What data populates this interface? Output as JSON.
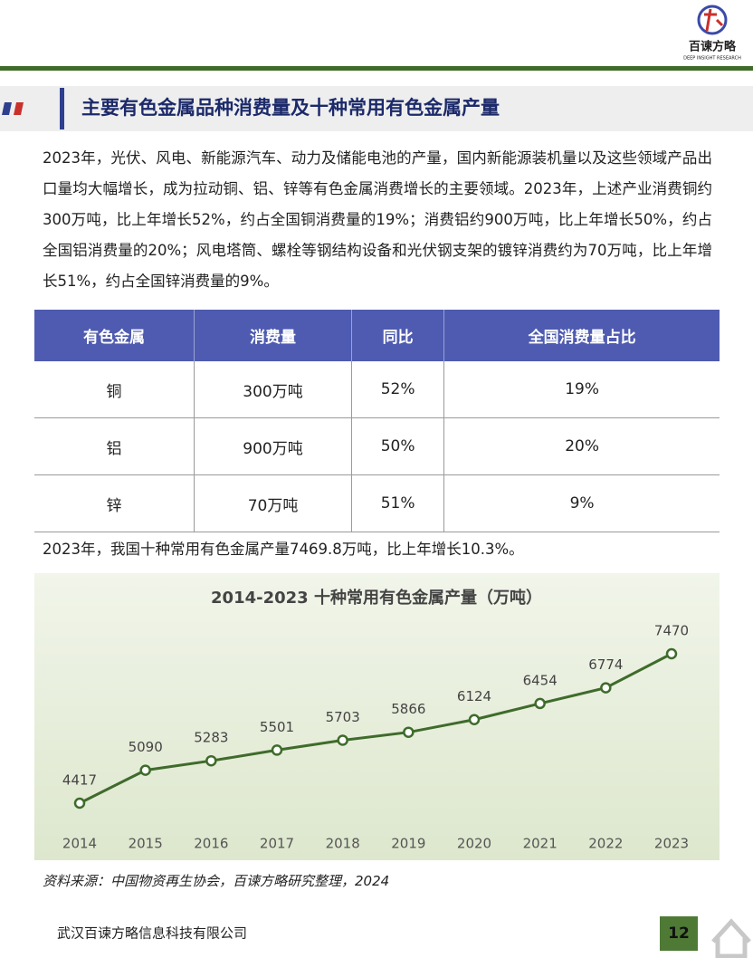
{
  "header": {
    "logo_text": "百谏方略",
    "logo_subtext": "DEEP INSIGHT RESEARCH"
  },
  "section_title": "主要有色金属品种消费量及十种常用有色金属产量",
  "paragraphs": [
    "2023年，光伏、风电、新能源汽车、动力及储能电池的产量，国内新能源装机量以及这些领域产品出口量均大幅增长，成为拉动铜、铝、锌等有色金属消费增长的主要领域。2023年，上述产业消费铜约300万吨，比上年增长52%，约占全国铜消费量的19%；消费铝约900万吨，比上年增长50%，约占全国铝消费量的20%；风电塔筒、螺栓等钢结构设备和光伏钢支架的镀锌消费约为70万吨，比上年增长51%，约占全国锌消费量的9%。",
    "2023年，我国十种常用有色金属产量7469.8万吨，比上年增长10.3%。"
  ],
  "table": {
    "columns": [
      "有色金属",
      "消费量",
      "同比",
      "全国消费量占比"
    ],
    "rows": [
      [
        "铜",
        "300万吨",
        "52%",
        "19%"
      ],
      [
        "铝",
        "900万吨",
        "50%",
        "20%"
      ],
      [
        "锌",
        "70万吨",
        "51%",
        "9%"
      ]
    ]
  },
  "chart_data": {
    "type": "line",
    "title": "2014-2023 十种常用有色金属产量（万吨）",
    "categories": [
      "2014",
      "2015",
      "2016",
      "2017",
      "2018",
      "2019",
      "2020",
      "2021",
      "2022",
      "2023"
    ],
    "values": [
      4417,
      5090,
      5283,
      5501,
      5703,
      5866,
      6124,
      6454,
      6774,
      7470
    ],
    "color": "#3f6b2b"
  },
  "source": "资料来源：中国物资再生协会，百谏方略研究整理，2024",
  "footer": {
    "company": "武汉百谏方略信息科技有限公司",
    "page": "12"
  }
}
